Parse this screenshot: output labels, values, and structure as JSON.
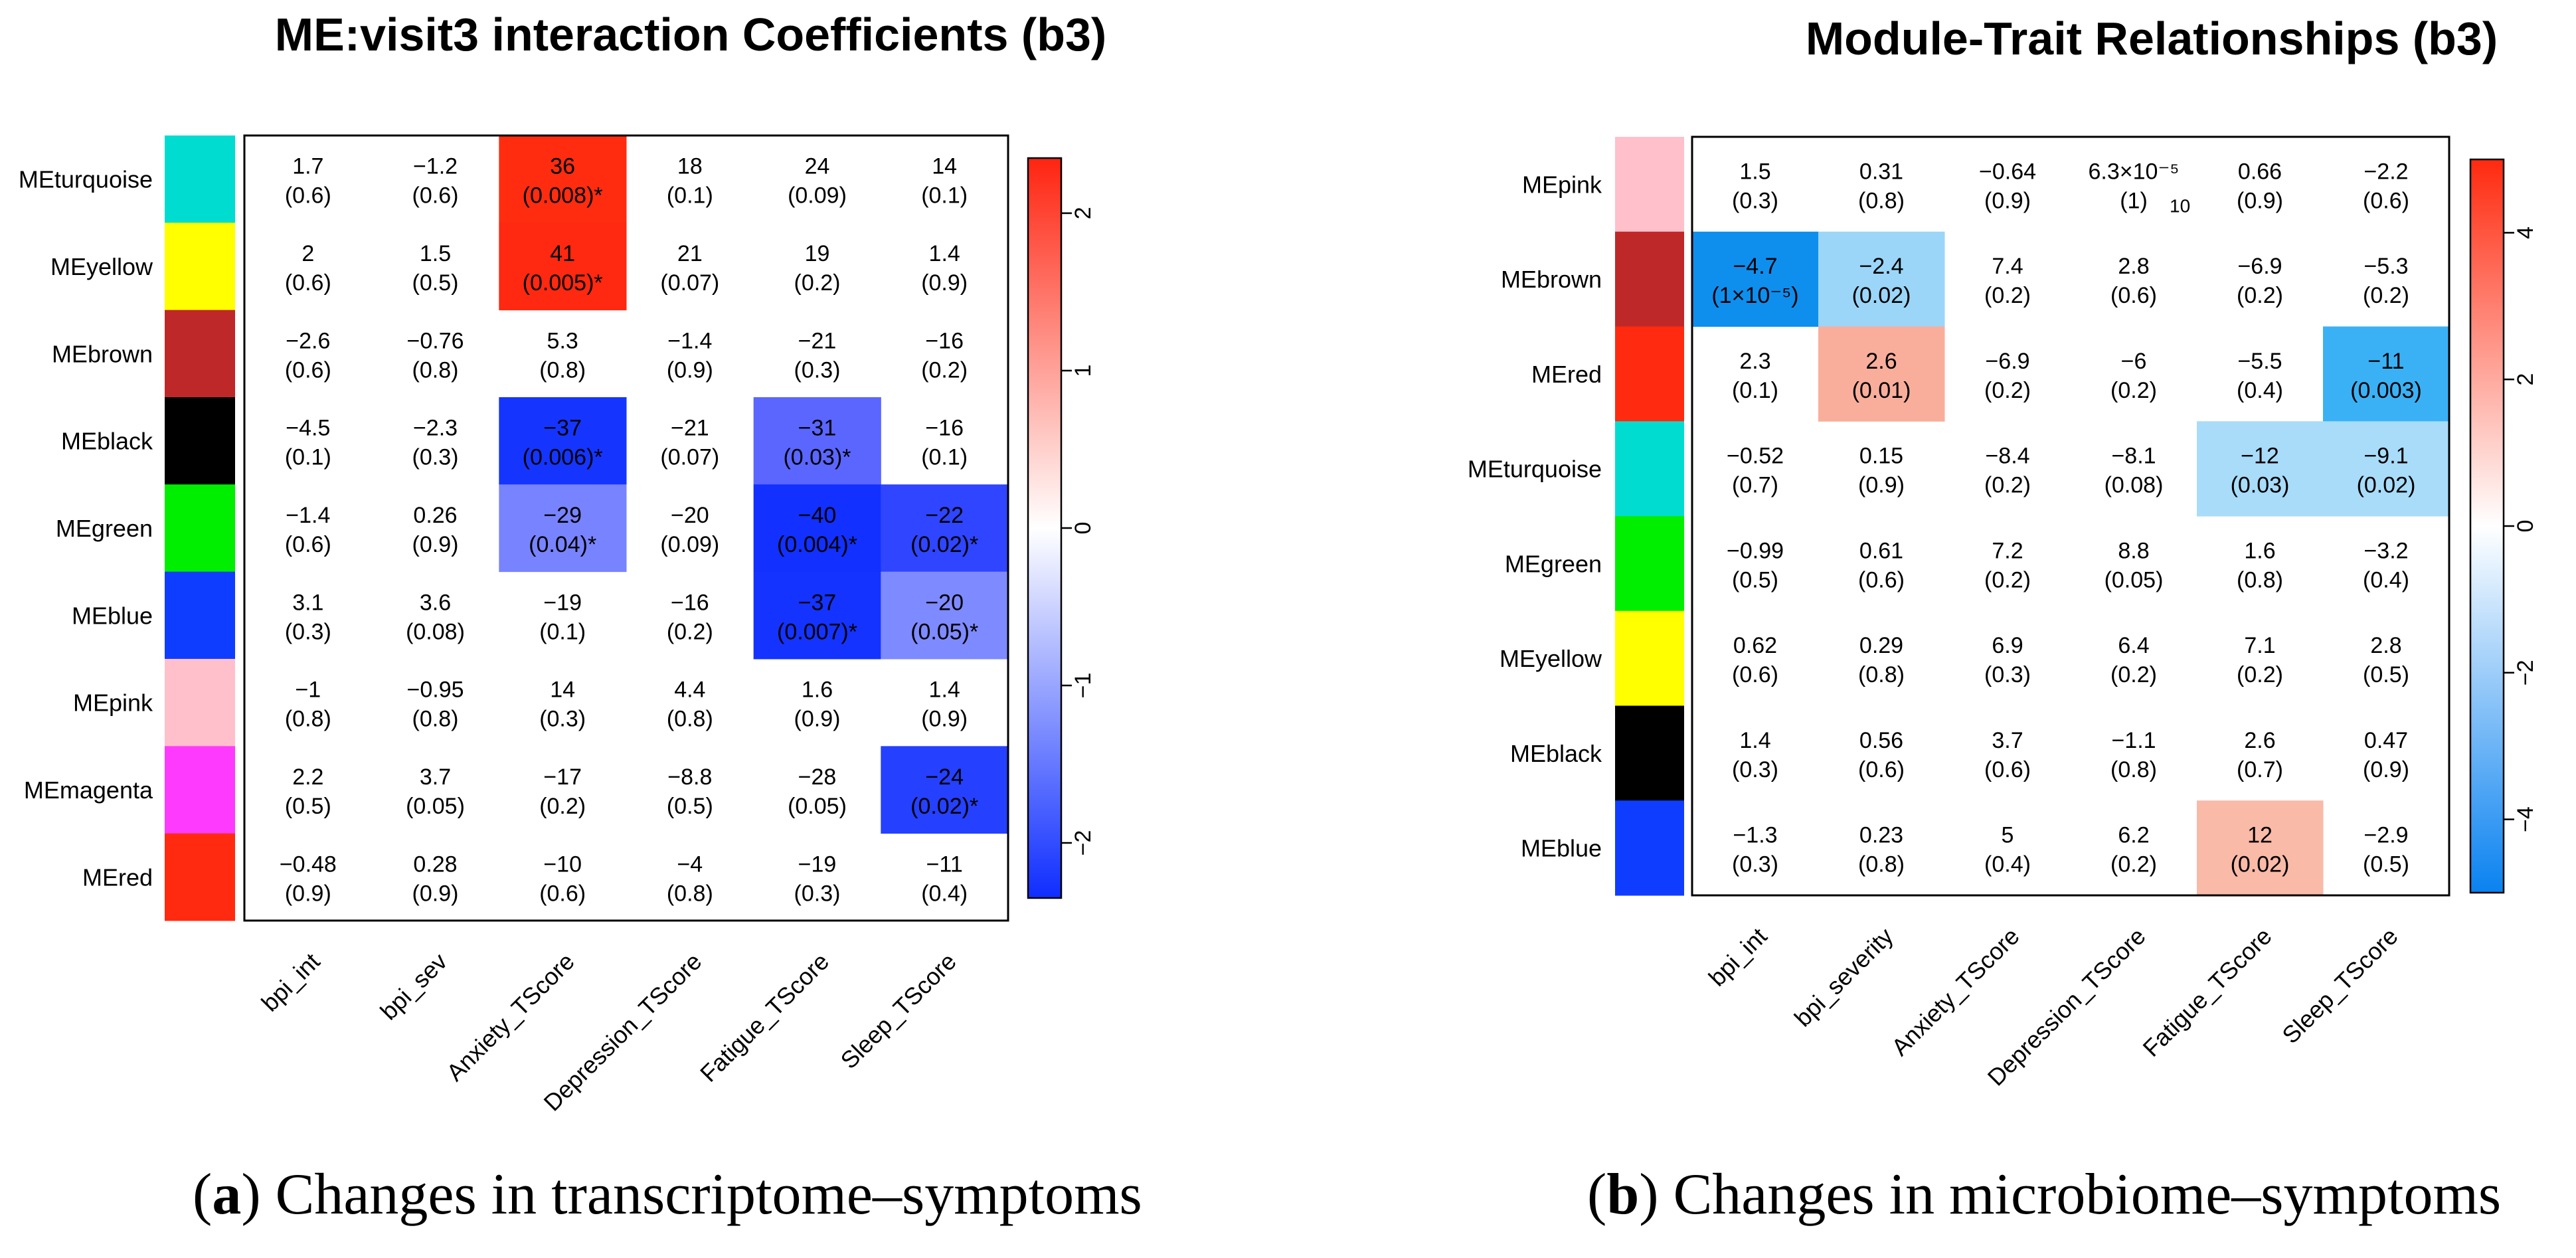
{
  "chart_data": [
    {
      "type": "heatmap",
      "panel": "a",
      "title": "ME:visit3 interaction Coefficients (b3)",
      "rows": [
        {
          "name": "MEturquoise",
          "color": "#00DDD0"
        },
        {
          "name": "MEyellow",
          "color": "#FFFF00"
        },
        {
          "name": "MEbrown",
          "color": "#BF2828"
        },
        {
          "name": "MEblack",
          "color": "#000000"
        },
        {
          "name": "MEgreen",
          "color": "#00EE00"
        },
        {
          "name": "MEblue",
          "color": "#0F3DFF"
        },
        {
          "name": "MEpink",
          "color": "#FFC0CB"
        },
        {
          "name": "MEmagenta",
          "color": "#FF3AFF"
        },
        {
          "name": "MEred",
          "color": "#FF2A0F"
        }
      ],
      "columns": [
        "bpi_int",
        "bpi_sev",
        "Anxiety_TScore",
        "Depression_TScore",
        "Fatigue_TScore",
        "Sleep_TScore"
      ],
      "cells": [
        [
          {
            "v": "1.7",
            "p": "(0.6)",
            "fill": null
          },
          {
            "v": "−1.2",
            "p": "(0.6)",
            "fill": null
          },
          {
            "v": "36",
            "p": "(0.008)*",
            "fill": "#FF2C10"
          },
          {
            "v": "18",
            "p": "(0.1)",
            "fill": null
          },
          {
            "v": "24",
            "p": "(0.09)",
            "fill": null
          },
          {
            "v": "14",
            "p": "(0.1)",
            "fill": null
          }
        ],
        [
          {
            "v": "2",
            "p": "(0.6)",
            "fill": null
          },
          {
            "v": "1.5",
            "p": "(0.5)",
            "fill": null
          },
          {
            "v": "41",
            "p": "(0.005)*",
            "fill": "#FF2810"
          },
          {
            "v": "21",
            "p": "(0.07)",
            "fill": null
          },
          {
            "v": "19",
            "p": "(0.2)",
            "fill": null
          },
          {
            "v": "1.4",
            "p": "(0.9)",
            "fill": null
          }
        ],
        [
          {
            "v": "−2.6",
            "p": "(0.6)",
            "fill": null
          },
          {
            "v": "−0.76",
            "p": "(0.8)",
            "fill": null
          },
          {
            "v": "5.3",
            "p": "(0.8)",
            "fill": null
          },
          {
            "v": "−1.4",
            "p": "(0.9)",
            "fill": null
          },
          {
            "v": "−21",
            "p": "(0.3)",
            "fill": null
          },
          {
            "v": "−16",
            "p": "(0.2)",
            "fill": null
          }
        ],
        [
          {
            "v": "−4.5",
            "p": "(0.1)",
            "fill": null
          },
          {
            "v": "−2.3",
            "p": "(0.3)",
            "fill": null
          },
          {
            "v": "−37",
            "p": "(0.006)*",
            "fill": "#1535FF"
          },
          {
            "v": "−21",
            "p": "(0.07)",
            "fill": null
          },
          {
            "v": "−31",
            "p": "(0.03)*",
            "fill": "#5A66FF"
          },
          {
            "v": "−16",
            "p": "(0.1)",
            "fill": null
          }
        ],
        [
          {
            "v": "−1.4",
            "p": "(0.6)",
            "fill": null
          },
          {
            "v": "0.26",
            "p": "(0.9)",
            "fill": null
          },
          {
            "v": "−29",
            "p": "(0.04)*",
            "fill": "#7883FF"
          },
          {
            "v": "−20",
            "p": "(0.09)",
            "fill": null
          },
          {
            "v": "−40",
            "p": "(0.004)*",
            "fill": "#1230FF"
          },
          {
            "v": "−22",
            "p": "(0.02)*",
            "fill": "#2F45FF"
          }
        ],
        [
          {
            "v": "3.1",
            "p": "(0.3)",
            "fill": null
          },
          {
            "v": "3.6",
            "p": "(0.08)",
            "fill": null
          },
          {
            "v": "−19",
            "p": "(0.1)",
            "fill": null
          },
          {
            "v": "−16",
            "p": "(0.2)",
            "fill": null
          },
          {
            "v": "−37",
            "p": "(0.007)*",
            "fill": "#1433FF"
          },
          {
            "v": "−20",
            "p": "(0.05)*",
            "fill": "#7E8AFF"
          }
        ],
        [
          {
            "v": "−1",
            "p": "(0.8)",
            "fill": null
          },
          {
            "v": "−0.95",
            "p": "(0.8)",
            "fill": null
          },
          {
            "v": "14",
            "p": "(0.3)",
            "fill": null
          },
          {
            "v": "4.4",
            "p": "(0.8)",
            "fill": null
          },
          {
            "v": "1.6",
            "p": "(0.9)",
            "fill": null
          },
          {
            "v": "1.4",
            "p": "(0.9)",
            "fill": null
          }
        ],
        [
          {
            "v": "2.2",
            "p": "(0.5)",
            "fill": null
          },
          {
            "v": "3.7",
            "p": "(0.05)",
            "fill": null
          },
          {
            "v": "−17",
            "p": "(0.2)",
            "fill": null
          },
          {
            "v": "−8.8",
            "p": "(0.5)",
            "fill": null
          },
          {
            "v": "−28",
            "p": "(0.05)",
            "fill": null
          },
          {
            "v": "−24",
            "p": "(0.02)*",
            "fill": "#2540FF"
          }
        ],
        [
          {
            "v": "−0.48",
            "p": "(0.9)",
            "fill": null
          },
          {
            "v": "0.28",
            "p": "(0.9)",
            "fill": null
          },
          {
            "v": "−10",
            "p": "(0.6)",
            "fill": null
          },
          {
            "v": "−4",
            "p": "(0.8)",
            "fill": null
          },
          {
            "v": "−19",
            "p": "(0.3)",
            "fill": null
          },
          {
            "v": "−11",
            "p": "(0.4)",
            "fill": null
          }
        ]
      ],
      "legend": {
        "ticks": [
          "2",
          "1",
          "0",
          "−1",
          "−2"
        ],
        "tick_values": [
          2,
          1,
          0,
          -1,
          -2
        ],
        "range": [
          -2.35,
          2.35
        ],
        "colors": [
          "#0F2DFF",
          "#FFFFFF",
          "#FF2410"
        ],
        "placement": "right"
      },
      "caption_letter": "a",
      "caption_text": " Changes in transcriptome–symptoms"
    },
    {
      "type": "heatmap",
      "panel": "b",
      "title": "Module-Trait Relationships (b3)",
      "rows": [
        {
          "name": "MEpink",
          "color": "#FFC0CB"
        },
        {
          "name": "MEbrown",
          "color": "#BF2828"
        },
        {
          "name": "MEred",
          "color": "#FF2A0F"
        },
        {
          "name": "MEturquoise",
          "color": "#00DDD0"
        },
        {
          "name": "MEgreen",
          "color": "#00EE00"
        },
        {
          "name": "MEyellow",
          "color": "#FFFF00"
        },
        {
          "name": "MEblack",
          "color": "#000000"
        },
        {
          "name": "MEblue",
          "color": "#0F3DFF"
        }
      ],
      "columns": [
        "bpi_int",
        "bpi_severity",
        "Anxiety_TScore",
        "Depression_TScore",
        "Fatigue_TScore",
        "Sleep_TScore"
      ],
      "cells": [
        [
          {
            "v": "1.5",
            "p": "(0.3)",
            "fill": null
          },
          {
            "v": "0.31",
            "p": "(0.8)",
            "fill": null
          },
          {
            "v": "−0.64",
            "p": "(0.9)",
            "fill": null
          },
          {
            "v": "6.3×10⁻⁵",
            "p": "(1)",
            "fill": null,
            "extra": "10"
          },
          {
            "v": "0.66",
            "p": "(0.9)",
            "fill": null
          },
          {
            "v": "−2.2",
            "p": "(0.6)",
            "fill": null
          }
        ],
        [
          {
            "v": "−4.7",
            "p": "(1×10⁻⁵)",
            "fill": "#0E8FEE"
          },
          {
            "v": "−2.4",
            "p": "(0.02)",
            "fill": "#9BD6F8"
          },
          {
            "v": "7.4",
            "p": "(0.2)",
            "fill": null
          },
          {
            "v": "2.8",
            "p": "(0.6)",
            "fill": null
          },
          {
            "v": "−6.9",
            "p": "(0.2)",
            "fill": null
          },
          {
            "v": "−5.3",
            "p": "(0.2)",
            "fill": null
          }
        ],
        [
          {
            "v": "2.3",
            "p": "(0.1)",
            "fill": null
          },
          {
            "v": "2.6",
            "p": "(0.01)",
            "fill": "#F9AE9C"
          },
          {
            "v": "−6.9",
            "p": "(0.2)",
            "fill": null
          },
          {
            "v": "−6",
            "p": "(0.2)",
            "fill": null
          },
          {
            "v": "−5.5",
            "p": "(0.4)",
            "fill": null
          },
          {
            "v": "−11",
            "p": "(0.003)",
            "fill": "#3BB1F5"
          }
        ],
        [
          {
            "v": "−0.52",
            "p": "(0.7)",
            "fill": null
          },
          {
            "v": "0.15",
            "p": "(0.9)",
            "fill": null
          },
          {
            "v": "−8.4",
            "p": "(0.2)",
            "fill": null
          },
          {
            "v": "−8.1",
            "p": "(0.08)",
            "fill": null
          },
          {
            "v": "−12",
            "p": "(0.03)",
            "fill": "#A8DCF9"
          },
          {
            "v": "−9.1",
            "p": "(0.02)",
            "fill": "#A8DCF9"
          }
        ],
        [
          {
            "v": "−0.99",
            "p": "(0.5)",
            "fill": null
          },
          {
            "v": "0.61",
            "p": "(0.6)",
            "fill": null
          },
          {
            "v": "7.2",
            "p": "(0.2)",
            "fill": null
          },
          {
            "v": "8.8",
            "p": "(0.05)",
            "fill": null
          },
          {
            "v": "1.6",
            "p": "(0.8)",
            "fill": null
          },
          {
            "v": "−3.2",
            "p": "(0.4)",
            "fill": null
          }
        ],
        [
          {
            "v": "0.62",
            "p": "(0.6)",
            "fill": null
          },
          {
            "v": "0.29",
            "p": "(0.8)",
            "fill": null
          },
          {
            "v": "6.9",
            "p": "(0.3)",
            "fill": null
          },
          {
            "v": "6.4",
            "p": "(0.2)",
            "fill": null
          },
          {
            "v": "7.1",
            "p": "(0.2)",
            "fill": null
          },
          {
            "v": "2.8",
            "p": "(0.5)",
            "fill": null
          }
        ],
        [
          {
            "v": "1.4",
            "p": "(0.3)",
            "fill": null
          },
          {
            "v": "0.56",
            "p": "(0.6)",
            "fill": null
          },
          {
            "v": "3.7",
            "p": "(0.6)",
            "fill": null
          },
          {
            "v": "−1.1",
            "p": "(0.8)",
            "fill": null
          },
          {
            "v": "2.6",
            "p": "(0.7)",
            "fill": null
          },
          {
            "v": "0.47",
            "p": "(0.9)",
            "fill": null
          }
        ],
        [
          {
            "v": "−1.3",
            "p": "(0.3)",
            "fill": null
          },
          {
            "v": "0.23",
            "p": "(0.8)",
            "fill": null
          },
          {
            "v": "5",
            "p": "(0.4)",
            "fill": null
          },
          {
            "v": "6.2",
            "p": "(0.2)",
            "fill": null
          },
          {
            "v": "12",
            "p": "(0.02)",
            "fill": "#F9BAA8"
          },
          {
            "v": "−2.9",
            "p": "(0.5)",
            "fill": null
          }
        ]
      ],
      "legend": {
        "ticks": [
          "4",
          "2",
          "0",
          "−2",
          "−4"
        ],
        "tick_values": [
          4,
          2,
          0,
          -2,
          -4
        ],
        "range": [
          -5,
          5
        ],
        "colors": [
          "#0A82F0",
          "#FFFFFF",
          "#FF2A0F"
        ],
        "placement": "right"
      },
      "caption_letter": "b",
      "caption_text": " Changes in microbiome–symptoms"
    }
  ]
}
